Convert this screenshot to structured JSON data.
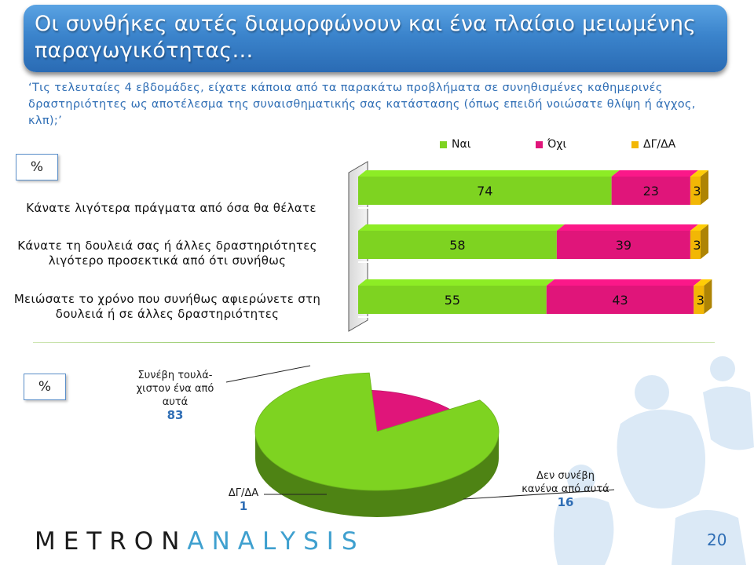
{
  "title": "Οι συνθήκες αυτές διαμορφώνουν και ένα πλαίσιο μειωμένης παραγωγικότητας…",
  "question": "‘Τις τελευταίες 4 εβδομάδες, είχατε κάποια από τα παρακάτω προβλήματα σε συνηθισμένες καθημερινές δραστηριότητες ως αποτέλεσμα της συναισθηματικής σας κατάστασης (όπως επειδή νοιώσατε θλίψη ή άγχος, κλπ);’",
  "pct_label_top": "%",
  "pct_label_bottom": "%",
  "page_number": "20",
  "logo": {
    "part1": "METRON",
    "part2": "ANALYSIS"
  },
  "colors": {
    "yes": "#7ed321",
    "no": "#e0157a",
    "dk": "#f2b705",
    "title_bg": "#3b84cc",
    "question": "#2f6eb5"
  },
  "chart_data": [
    {
      "type": "bar",
      "orientation": "horizontal",
      "stacked": true,
      "categories": [
        "Κάνατε λιγότερα πράγματα από όσα θα θέλατε",
        "Κάνατε τη δουλειά σας ή άλλες δραστηριότητες λιγότερο προσεκτικά από ότι συνήθως",
        "Μειώσατε το χρόνο που συνήθως αφιερώνετε στη δουλειά ή σε άλλες δραστηριότητες"
      ],
      "category_lines": [
        [
          "Κάνατε λιγότερα πράγματα από όσα θα θέλατε"
        ],
        [
          "Κάνατε τη δουλειά σας ή άλλες δραστηριότητες",
          "λιγότερο προσεκτικά από ότι συνήθως"
        ],
        [
          "Μειώσατε το χρόνο που συνήθως αφιερώνετε στη",
          "δουλειά ή σε άλλες δραστηριότητες"
        ]
      ],
      "series": [
        {
          "name": "Ναι",
          "color": "#7ed321",
          "values": [
            74,
            58,
            55
          ]
        },
        {
          "name": "Όχι",
          "color": "#e0157a",
          "values": [
            23,
            39,
            43
          ]
        },
        {
          "name": "ΔΓ/ΔΑ",
          "color": "#f2b705",
          "values": [
            3,
            3,
            3
          ]
        }
      ],
      "xlim": [
        0,
        100
      ],
      "legend": "top"
    },
    {
      "type": "pie",
      "slices": [
        {
          "label_lines": [
            "Συνέβη τουλά-",
            "χιστον ένα από",
            "αυτά"
          ],
          "value": 83,
          "color": "#7ed321"
        },
        {
          "label_lines": [
            "Δεν συνέβη",
            "κανένα από αυτά"
          ],
          "value": 16,
          "color": "#e0157a"
        },
        {
          "label_lines": [
            "ΔΓ/ΔΑ"
          ],
          "value": 1,
          "color": "#f2b705"
        }
      ]
    }
  ]
}
